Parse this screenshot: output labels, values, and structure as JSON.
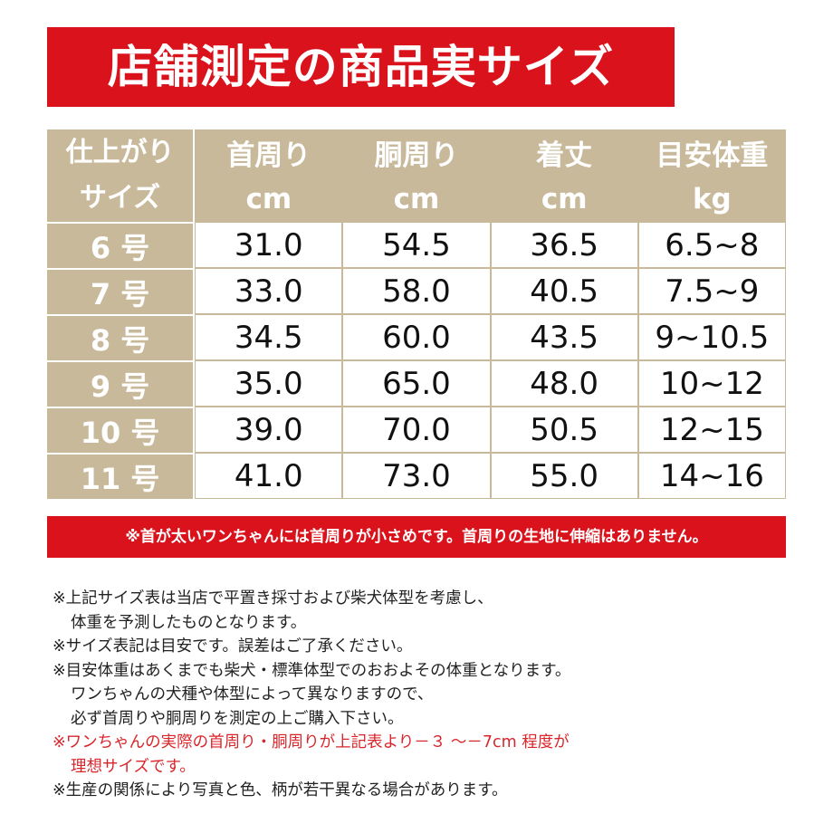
{
  "header": {
    "title": "店舗測定の商品実サイズ"
  },
  "table": {
    "corner": [
      "仕上がり",
      "サイズ"
    ],
    "columns": [
      {
        "name": "首周り",
        "unit": "cm"
      },
      {
        "name": "胴周り",
        "unit": "cm"
      },
      {
        "name": "着丈",
        "unit": "cm"
      },
      {
        "name": "目安体重",
        "unit": "kg"
      }
    ],
    "rows": [
      [
        "6 号",
        "31.0",
        "54.5",
        "36.5",
        "6.5~8"
      ],
      [
        "7 号",
        "33.0",
        "58.0",
        "40.5",
        "7.5~9"
      ],
      [
        "8 号",
        "34.5",
        "60.0",
        "43.5",
        "9~10.5"
      ],
      [
        "9 号",
        "35.0",
        "65.0",
        "48.0",
        "10~12"
      ],
      [
        "10 号",
        "39.0",
        "70.0",
        "50.5",
        "12~15"
      ],
      [
        "11 号",
        "41.0",
        "73.0",
        "55.0",
        "14~16"
      ]
    ]
  },
  "warning": "※首が太いワンちゃんには首周りが小さめです。首周りの生地に伸縮はありません。",
  "notes": [
    {
      "lines": [
        "※上記サイズ表は当店で平置き採寸および柴犬体型を考慮し、",
        "体重を予測したものとなります。"
      ]
    },
    {
      "lines": [
        "※サイズ表記は目安です。誤差はご了承ください。"
      ]
    },
    {
      "lines": [
        "※目安体重はあくまでも柴犬・標準体型でのおおよその体重となります。",
        "ワンちゃんの犬種や体型によって異なりますので、",
        "必ず首周りや胴周りを測定の上ご購入下さい。"
      ]
    },
    {
      "lines": [
        "※ワンちゃんの実際の首周り・胴周りが上記表より－３ ～－7cm 程度が",
        "理想サイズです。"
      ],
      "color": "#d9262b"
    },
    {
      "lines": [
        "※生産の関係により写真と色、柄が若干異なる場合があります。"
      ]
    }
  ]
}
